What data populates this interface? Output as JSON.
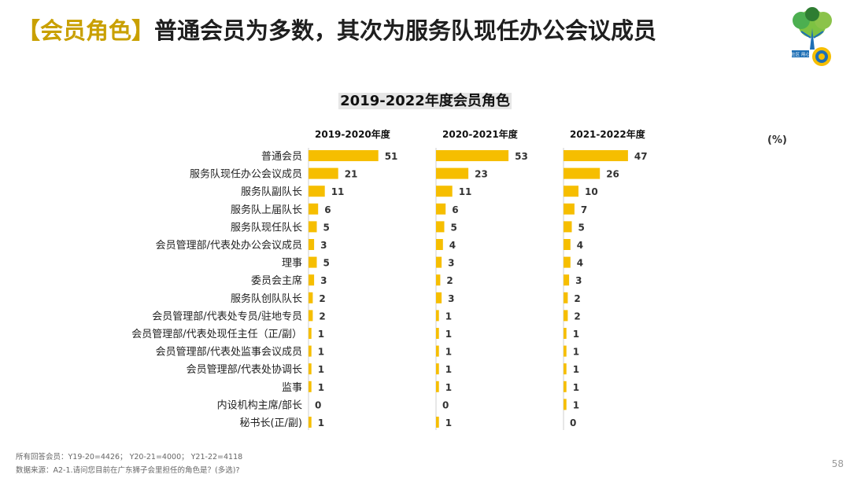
{
  "header": {
    "tag": "【会员角色】",
    "title": "普通会员为多数，其次为服务队现任办公会议成员"
  },
  "logo": {
    "text": "礼贤社区 用心服务"
  },
  "chart_data": {
    "type": "bar",
    "orientation": "horizontal",
    "title": "2019-2022年度会员角色",
    "unit": "(%)",
    "categories": [
      "普通会员",
      "服务队现任办公会议成员",
      "服务队副队长",
      "服务队上届队长",
      "服务队现任队长",
      "会员管理部/代表处办公会议成员",
      "理事",
      "委员会主席",
      "服务队创队队长",
      "会员管理部/代表处专员/驻地专员",
      "会员管理部/代表处现任主任（正/副）",
      "会员管理部/代表处监事会议成员",
      "会员管理部/代表处协调长",
      "监事",
      "内设机构主席/部长",
      "秘书长(正/副)"
    ],
    "series": [
      {
        "name": "2019-2020年度",
        "values": [
          51,
          21,
          11,
          6,
          5,
          3,
          5,
          3,
          2,
          2,
          1,
          1,
          1,
          1,
          0,
          1
        ]
      },
      {
        "name": "2020-2021年度",
        "values": [
          53,
          23,
          11,
          6,
          5,
          4,
          3,
          2,
          3,
          1,
          1,
          1,
          1,
          1,
          0,
          1
        ]
      },
      {
        "name": "2021-2022年度",
        "values": [
          47,
          26,
          10,
          7,
          5,
          4,
          4,
          3,
          2,
          2,
          1,
          1,
          1,
          1,
          1,
          0
        ]
      }
    ],
    "bar_color": "#f6be00",
    "xlim": [
      0,
      60
    ]
  },
  "footnotes": {
    "base": "所有回答会员：Y19-20=4426；  Y20-21=4000；  Y21-22=4118",
    "source": "数据来源：A2-1.请问您目前在广东狮子会里担任的角色是？(多选)?"
  },
  "page_number": "58"
}
